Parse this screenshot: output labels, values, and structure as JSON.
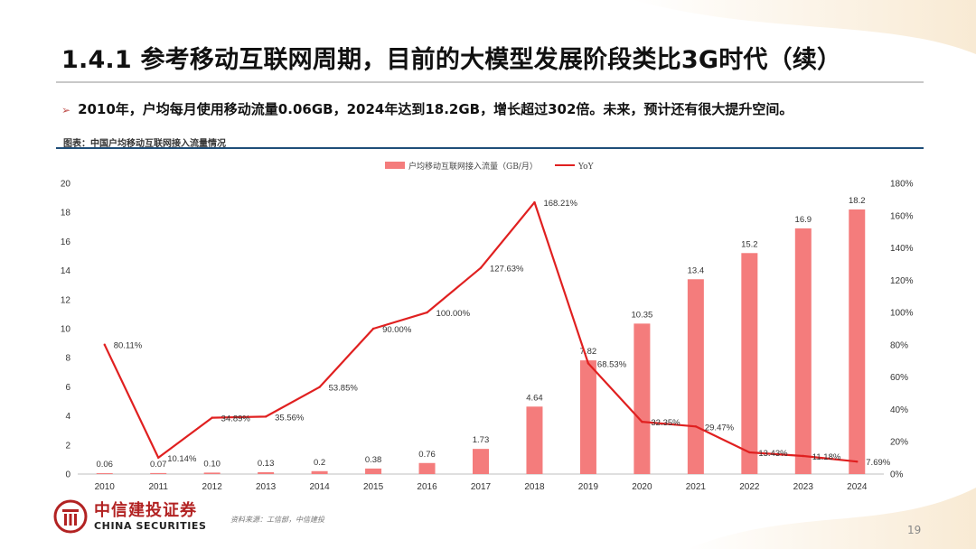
{
  "title": "1.4.1 参考移动互联网周期，目前的大模型发展阶段类比3G时代（续）",
  "bullet": "2010年，户均每月使用移动流量0.06GB，2024年达到18.2GB，增长超过302倍。未来，预计还有很大提升空间。",
  "figure_caption": "图表：中国户均移动互联网接入流量情况",
  "source": "资料来源：工信部，中信建投",
  "page_number": "19",
  "logo": {
    "cn": "中信建投证券",
    "en": "CHINA SECURITIES"
  },
  "colors": {
    "bar": "#f47c7c",
    "line": "#e02020",
    "accent_rule": "#1f4e79"
  },
  "chart_data": {
    "type": "bar",
    "categories": [
      "2010",
      "2011",
      "2012",
      "2013",
      "2014",
      "2015",
      "2016",
      "2017",
      "2018",
      "2019",
      "2020",
      "2021",
      "2022",
      "2023",
      "2024"
    ],
    "series": [
      {
        "name": "户均移动互联网接入流量（GB/月）",
        "type": "bar",
        "axis": "left",
        "values": [
          0.06,
          0.07,
          0.1,
          0.13,
          0.2,
          0.38,
          0.76,
          1.73,
          4.64,
          7.82,
          10.35,
          13.4,
          15.2,
          16.9,
          18.2
        ],
        "labels": [
          "0.06",
          "0.07",
          "0.10",
          "0.13",
          "0.2",
          "0.38",
          "0.76",
          "1.73",
          "4.64",
          "7.82",
          "10.35",
          "13.4",
          "15.2",
          "16.9",
          "18.2"
        ]
      },
      {
        "name": "YoY",
        "type": "line",
        "axis": "right",
        "values": [
          80.11,
          10.14,
          34.89,
          35.56,
          53.85,
          90.0,
          100.0,
          127.63,
          168.21,
          68.53,
          32.35,
          29.47,
          13.43,
          11.18,
          7.69
        ],
        "labels": [
          "80.11%",
          "10.14%",
          "34.89%",
          "35.56%",
          "53.85%",
          "90.00%",
          "100.00%",
          "127.63%",
          "168.21%",
          "68.53%",
          "32.35%",
          "29.47%",
          "13.43%",
          "11.18%",
          "7.69%"
        ]
      }
    ],
    "y_left": {
      "ylim": [
        0,
        20
      ],
      "ticks": [
        "0",
        "2",
        "4",
        "6",
        "8",
        "10",
        "12",
        "14",
        "16",
        "18",
        "20"
      ]
    },
    "y_right": {
      "ylim": [
        0,
        180
      ],
      "ticks": [
        "0%",
        "20%",
        "40%",
        "60%",
        "80%",
        "100%",
        "120%",
        "140%",
        "160%",
        "180%"
      ]
    },
    "legend": "top-center",
    "grid": false
  }
}
